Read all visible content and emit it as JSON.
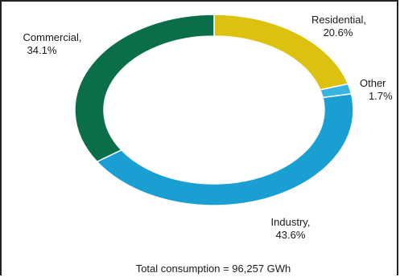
{
  "chart_data": {
    "type": "pie",
    "title": "",
    "slices": [
      {
        "name": "Residential",
        "label": "Residential,",
        "value_text": "20.6%",
        "value": 20.6,
        "color": "#dcc10e"
      },
      {
        "name": "Other",
        "label": "Other",
        "value_text": "1.7%",
        "value": 1.7,
        "color": "#38b4e0"
      },
      {
        "name": "Industry",
        "label": "Industry,",
        "value_text": "43.6%",
        "value": 43.6,
        "color": "#1a9fd2"
      },
      {
        "name": "Commercial",
        "label": "Commercial,",
        "value_text": "34.1%",
        "value": 34.1,
        "color": "#0a6f49"
      }
    ],
    "footer": "Total consumption = 96,257 GWh"
  }
}
